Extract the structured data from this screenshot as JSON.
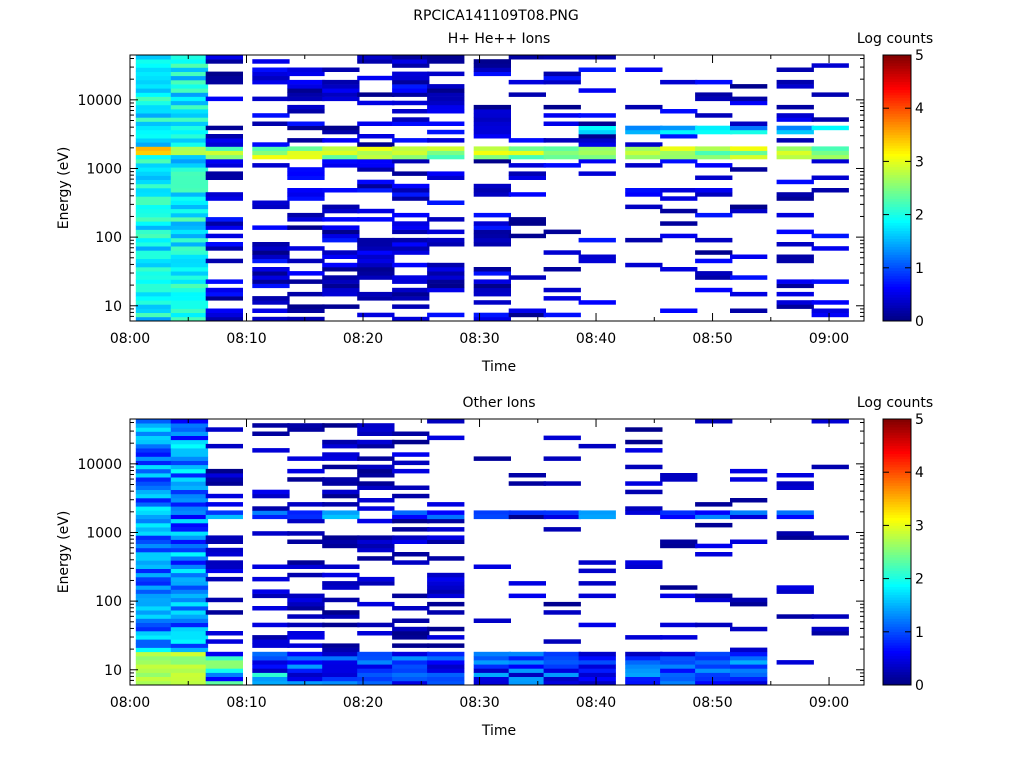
{
  "figure_title": "RPCICA141109T08.PNG",
  "chart_data": [
    {
      "type": "heatmap",
      "title": "H+ He++ Ions",
      "xlabel": "Time",
      "ylabel": "Energy (eV)",
      "colorbar_label": "Log counts",
      "x_ticks": [
        "08:00",
        "08:10",
        "08:20",
        "08:30",
        "08:40",
        "08:50",
        "09:00"
      ],
      "x_range": [
        "08:00",
        "09:03"
      ],
      "y_ticks": [
        "10",
        "100",
        "1000",
        "10000"
      ],
      "y_scale": "log",
      "y_range": [
        6,
        45000
      ],
      "colorbar_ticks": [
        "0",
        "1",
        "2",
        "3",
        "4",
        "5"
      ],
      "colorbar_range": [
        0,
        5
      ],
      "colormap": "jet",
      "time_bins": [
        "08:02",
        "08:05",
        "08:08",
        "08:12",
        "08:15",
        "08:18",
        "08:21",
        "08:24",
        "08:27",
        "08:31",
        "08:34",
        "08:37",
        "08:40",
        "08:44",
        "08:47",
        "08:50",
        "08:53",
        "08:57",
        "09:00"
      ],
      "features": [
        {
          "name": "dense band 08:02-08:08",
          "energy_range": [
            6,
            45000
          ],
          "log_counts": [
            1.5,
            2.5
          ]
        },
        {
          "name": "persistent line",
          "energy": 1700,
          "log_counts": [
            2.2,
            3.4
          ]
        },
        {
          "name": "secondary line",
          "energy": 3400,
          "log_counts": [
            1.3,
            2.0
          ]
        },
        {
          "name": "scattered low counts",
          "log_counts": [
            0.1,
            0.8
          ]
        }
      ]
    },
    {
      "type": "heatmap",
      "title": "Other Ions",
      "xlabel": "Time",
      "ylabel": "Energy (eV)",
      "colorbar_label": "Log counts",
      "x_ticks": [
        "08:00",
        "08:10",
        "08:20",
        "08:30",
        "08:40",
        "08:50",
        "09:00"
      ],
      "x_range": [
        "08:00",
        "09:03"
      ],
      "y_ticks": [
        "10",
        "100",
        "1000",
        "10000"
      ],
      "y_scale": "log",
      "y_range": [
        6,
        45000
      ],
      "colorbar_ticks": [
        "0",
        "1",
        "2",
        "3",
        "4",
        "5"
      ],
      "colorbar_range": [
        0,
        5
      ],
      "colormap": "jet",
      "time_bins": [
        "08:02",
        "08:05",
        "08:08",
        "08:12",
        "08:15",
        "08:18",
        "08:21",
        "08:24",
        "08:27",
        "08:31",
        "08:34",
        "08:37",
        "08:40",
        "08:44",
        "08:47",
        "08:50",
        "08:53",
        "08:57",
        "09:00"
      ],
      "features": [
        {
          "name": "dense band 08:02-08:08",
          "energy_range": [
            6,
            45000
          ],
          "log_counts": [
            0.5,
            2.0
          ]
        },
        {
          "name": "line near 1800 eV",
          "energy": 1800,
          "log_counts": [
            0.4,
            1.8
          ]
        },
        {
          "name": "low-energy enhancement",
          "energy_range": [
            6,
            18
          ],
          "log_counts": [
            0.3,
            2.8
          ]
        }
      ]
    }
  ]
}
